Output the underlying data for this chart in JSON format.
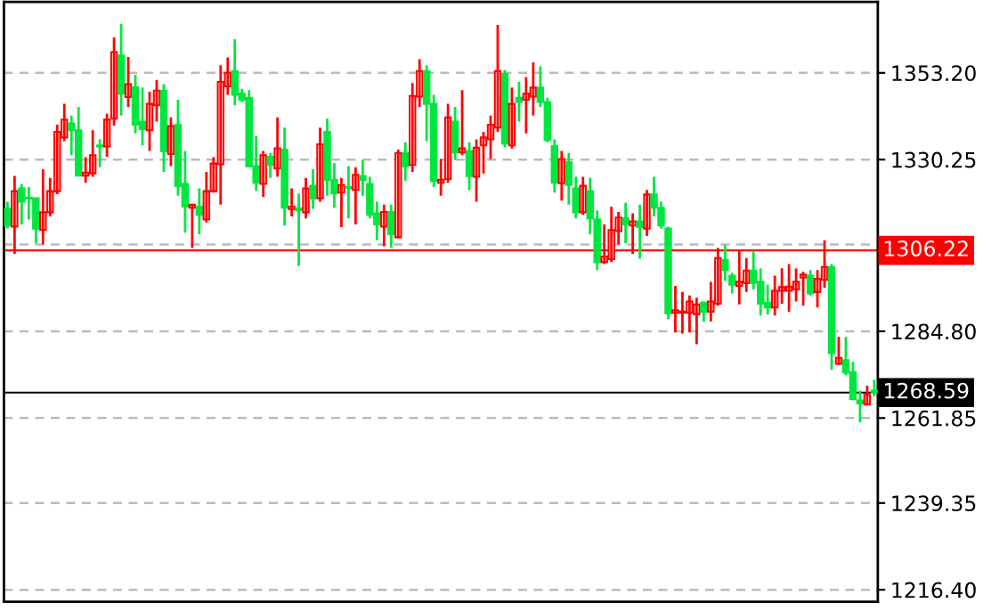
{
  "chart_data": {
    "type": "candlestick",
    "categories": [
      null,
      null,
      null,
      null,
      null,
      null,
      null,
      null,
      null,
      null,
      null,
      null,
      null,
      null,
      null,
      null,
      null,
      null,
      null,
      null,
      null,
      null,
      null,
      null,
      null,
      null,
      null,
      null,
      null,
      null,
      null,
      null,
      null,
      null,
      null,
      null,
      null,
      null,
      null,
      null,
      null,
      null,
      null,
      null,
      null,
      null,
      null,
      null,
      null,
      null,
      null,
      null,
      null,
      null,
      null,
      null,
      null,
      null,
      null,
      null,
      null,
      null,
      null,
      null,
      null,
      null,
      null,
      null,
      null,
      null,
      null,
      null,
      null,
      null,
      null,
      null,
      null,
      null,
      null,
      null,
      null,
      null,
      null,
      null,
      null,
      null,
      null,
      null,
      null,
      null,
      null,
      null,
      null,
      null,
      null,
      null,
      null,
      null,
      null,
      null,
      null,
      null,
      null,
      null,
      null,
      null,
      null,
      null,
      null,
      null,
      null,
      null,
      null,
      null,
      null,
      null,
      null,
      null,
      null,
      null,
      null,
      null,
      null
    ],
    "ohlc": [
      [
        1317.2,
        1319.1,
        1312.0,
        1312.8
      ],
      [
        1312.5,
        1325.9,
        1305.3,
        1321.9
      ],
      [
        1322.6,
        1323.8,
        1313.1,
        1319.1
      ],
      [
        1320.2,
        1323.0,
        1314.4,
        1319.9
      ],
      [
        1320.0,
        1320.2,
        1308.1,
        1312.0
      ],
      [
        1311.6,
        1327.7,
        1307.8,
        1316.3
      ],
      [
        1316.3,
        1325.4,
        1315.2,
        1321.9
      ],
      [
        1321.9,
        1339.5,
        1321.1,
        1337.6
      ],
      [
        1336.1,
        1345.0,
        1335.1,
        1340.8
      ],
      [
        1339.8,
        1341.9,
        1331.4,
        1338.0
      ],
      [
        1338.0,
        1344.2,
        1326.0,
        1326.0
      ],
      [
        1326.0,
        1330.9,
        1324.1,
        1326.8
      ],
      [
        1326.6,
        1338.0,
        1325.7,
        1331.4
      ],
      [
        1334.0,
        1335.6,
        1328.2,
        1333.7
      ],
      [
        1333.7,
        1342.4,
        1331.0,
        1340.8
      ],
      [
        1341.1,
        1362.6,
        1339.2,
        1358.7
      ],
      [
        1357.8,
        1366.2,
        1341.9,
        1347.7
      ],
      [
        1346.8,
        1357.4,
        1344.2,
        1350.2
      ],
      [
        1349.4,
        1352.7,
        1337.2,
        1339.5
      ],
      [
        1340.3,
        1349.3,
        1334.0,
        1338.3
      ],
      [
        1338.0,
        1348.2,
        1332.5,
        1345.0
      ],
      [
        1344.6,
        1351.3,
        1340.3,
        1348.5
      ],
      [
        1348.5,
        1350.2,
        1327.0,
        1332.5
      ],
      [
        1331.7,
        1341.4,
        1328.5,
        1339.1
      ],
      [
        1339.5,
        1346.1,
        1320.7,
        1323.2
      ],
      [
        1323.8,
        1332.5,
        1310.9,
        1317.8
      ],
      [
        1317.5,
        1318.3,
        1306.9,
        1318.3
      ],
      [
        1317.8,
        1322.6,
        1310.5,
        1315.6
      ],
      [
        1314.4,
        1327.0,
        1313.6,
        1321.9
      ],
      [
        1321.9,
        1330.9,
        1321.5,
        1329.2
      ],
      [
        1329.0,
        1355.2,
        1318.3,
        1350.8
      ],
      [
        1349.6,
        1357.3,
        1347.4,
        1353.2
      ],
      [
        1353.7,
        1362.1,
        1344.6,
        1347.4
      ],
      [
        1347.7,
        1349.0,
        1345.5,
        1346.1
      ],
      [
        1346.6,
        1348.6,
        1328.2,
        1328.5
      ],
      [
        1328.5,
        1336.4,
        1321.9,
        1324.1
      ],
      [
        1323.8,
        1332.5,
        1320.4,
        1331.4
      ],
      [
        1331.0,
        1332.0,
        1325.4,
        1328.8
      ],
      [
        1327.9,
        1341.4,
        1325.7,
        1333.2
      ],
      [
        1332.9,
        1338.7,
        1312.8,
        1317.5
      ],
      [
        1317.1,
        1322.6,
        1315.2,
        1317.8
      ],
      [
        1317.4,
        1321.3,
        1302.1,
        1316.8
      ],
      [
        1316.3,
        1325.4,
        1314.7,
        1322.6
      ],
      [
        1323.3,
        1327.7,
        1317.2,
        1319.9
      ],
      [
        1320.0,
        1338.7,
        1319.1,
        1334.3
      ],
      [
        1337.6,
        1341.1,
        1320.7,
        1324.9
      ],
      [
        1324.9,
        1329.3,
        1317.5,
        1321.3
      ],
      [
        1321.5,
        1325.4,
        1312.4,
        1323.5
      ],
      [
        1323.0,
        1328.5,
        1314.7,
        1322.7
      ],
      [
        1322.2,
        1328.2,
        1313.1,
        1326.2
      ],
      [
        1325.9,
        1330.1,
        1320.7,
        1324.8
      ],
      [
        1323.8,
        1325.7,
        1314.7,
        1315.6
      ],
      [
        1316.0,
        1319.1,
        1308.9,
        1313.1
      ],
      [
        1312.5,
        1318.3,
        1307.3,
        1316.4
      ],
      [
        1316.4,
        1318.3,
        1306.9,
        1310.5
      ],
      [
        1309.7,
        1332.9,
        1309.4,
        1332.0
      ],
      [
        1332.0,
        1334.8,
        1324.6,
        1328.5
      ],
      [
        1328.8,
        1350.5,
        1327.0,
        1347.1
      ],
      [
        1346.9,
        1356.8,
        1344.2,
        1353.7
      ],
      [
        1353.7,
        1355.2,
        1335.1,
        1345.0
      ],
      [
        1345.0,
        1347.4,
        1323.0,
        1324.6
      ],
      [
        1324.1,
        1330.4,
        1320.7,
        1324.9
      ],
      [
        1325.1,
        1345.0,
        1324.1,
        1341.4
      ],
      [
        1340.3,
        1344.2,
        1330.1,
        1332.1
      ],
      [
        1332.1,
        1348.6,
        1331.4,
        1333.2
      ],
      [
        1332.5,
        1334.8,
        1322.2,
        1325.9
      ],
      [
        1325.7,
        1335.6,
        1319.1,
        1333.4
      ],
      [
        1334.0,
        1337.6,
        1326.6,
        1336.1
      ],
      [
        1335.6,
        1341.9,
        1330.4,
        1339.5
      ],
      [
        1338.7,
        1365.9,
        1337.6,
        1353.7
      ],
      [
        1352.9,
        1354.0,
        1333.5,
        1334.5
      ],
      [
        1334.0,
        1349.3,
        1333.2,
        1345.0
      ],
      [
        1346.6,
        1350.8,
        1340.3,
        1345.5
      ],
      [
        1346.1,
        1352.1,
        1337.2,
        1347.7
      ],
      [
        1346.9,
        1356.0,
        1341.9,
        1349.3
      ],
      [
        1349.3,
        1354.9,
        1344.2,
        1345.5
      ],
      [
        1345.5,
        1346.6,
        1334.8,
        1335.4
      ],
      [
        1333.9,
        1335.6,
        1321.5,
        1324.1
      ],
      [
        1324.0,
        1332.5,
        1319.4,
        1330.4
      ],
      [
        1329.6,
        1332.0,
        1318.3,
        1323.5
      ],
      [
        1322.6,
        1325.7,
        1314.7,
        1316.3
      ],
      [
        1316.3,
        1325.7,
        1315.6,
        1323.3
      ],
      [
        1321.9,
        1325.4,
        1310.5,
        1314.7
      ],
      [
        1314.4,
        1316.8,
        1301.0,
        1303.1
      ],
      [
        1303.1,
        1313.1,
        1302.6,
        1304.6
      ],
      [
        1303.9,
        1317.8,
        1303.1,
        1311.6
      ],
      [
        1311.3,
        1316.4,
        1307.8,
        1314.9
      ],
      [
        1314.7,
        1318.8,
        1308.1,
        1313.1
      ],
      [
        1312.8,
        1316.0,
        1305.3,
        1313.9
      ],
      [
        1313.9,
        1318.3,
        1304.0,
        1312.4
      ],
      [
        1312.0,
        1322.2,
        1310.0,
        1321.0
      ],
      [
        1321.0,
        1325.7,
        1315.2,
        1317.5
      ],
      [
        1317.5,
        1319.1,
        1312.0,
        1312.8
      ],
      [
        1312.0,
        1312.5,
        1288.0,
        1289.6
      ],
      [
        1289.7,
        1296.8,
        1284.5,
        1290.4
      ],
      [
        1289.7,
        1295.2,
        1284.2,
        1290.0
      ],
      [
        1289.7,
        1294.3,
        1284.5,
        1292.7
      ],
      [
        1289.3,
        1293.7,
        1281.4,
        1291.9
      ],
      [
        1292.4,
        1292.7,
        1287.4,
        1290.0
      ],
      [
        1290.0,
        1297.9,
        1287.4,
        1292.7
      ],
      [
        1292.1,
        1306.9,
        1291.6,
        1304.2
      ],
      [
        1303.7,
        1307.6,
        1298.2,
        1301.0
      ],
      [
        1299.5,
        1300.3,
        1294.8,
        1297.1
      ],
      [
        1296.8,
        1306.5,
        1291.9,
        1297.9
      ],
      [
        1297.6,
        1304.2,
        1295.2,
        1300.9
      ],
      [
        1300.9,
        1306.1,
        1295.9,
        1297.6
      ],
      [
        1297.9,
        1301.5,
        1289.0,
        1292.1
      ],
      [
        1292.4,
        1297.1,
        1289.3,
        1291.1
      ],
      [
        1291.1,
        1299.5,
        1289.0,
        1295.5
      ],
      [
        1295.5,
        1301.5,
        1292.1,
        1296.5
      ],
      [
        1295.5,
        1302.6,
        1290.0,
        1296.6
      ],
      [
        1295.9,
        1301.4,
        1292.7,
        1297.9
      ],
      [
        1299.0,
        1300.6,
        1291.6,
        1299.8
      ],
      [
        1299.5,
        1301.0,
        1294.3,
        1294.8
      ],
      [
        1295.2,
        1301.0,
        1291.1,
        1298.7
      ],
      [
        1298.4,
        1308.9,
        1296.3,
        1301.8
      ],
      [
        1301.8,
        1302.6,
        1274.6,
        1279.0
      ],
      [
        1276.2,
        1283.3,
        1275.9,
        1277.8
      ],
      [
        1277.2,
        1283.3,
        1273.2,
        1273.9
      ],
      [
        1274.0,
        1276.7,
        1266.5,
        1266.9
      ],
      [
        1266.5,
        1269.1,
        1260.7,
        1265.7
      ],
      [
        1265.4,
        1270.4,
        1265.4,
        1268.0
      ],
      [
        1269.1,
        1272.0,
        1267.6,
        1268.59
      ]
    ],
    "colors": [
      "#00e640",
      "#ff0000",
      "#00e640",
      "#00e640",
      "#00e640",
      "#ff0000",
      "#ff0000",
      "#ff0000",
      "#ff0000",
      "#00e640",
      "#00e640",
      "#ff0000",
      "#ff0000",
      "#00e640",
      "#ff0000",
      "#ff0000",
      "#00e640",
      "#ff0000",
      "#00e640",
      "#00e640",
      "#ff0000",
      "#ff0000",
      "#00e640",
      "#ff0000",
      "#00e640",
      "#00e640",
      "#ff0000",
      "#00e640",
      "#ff0000",
      "#ff0000",
      "#ff0000",
      "#ff0000",
      "#00e640",
      "#00e640",
      "#00e640",
      "#00e640",
      "#ff0000",
      "#00e640",
      "#ff0000",
      "#00e640",
      "#ff0000",
      "#00e640",
      "#ff0000",
      "#00e640",
      "#ff0000",
      "#00e640",
      "#00e640",
      "#ff0000",
      "#00e640",
      "#ff0000",
      "#00e640",
      "#00e640",
      "#00e640",
      "#ff0000",
      "#00e640",
      "#ff0000",
      "#00e640",
      "#ff0000",
      "#ff0000",
      "#00e640",
      "#00e640",
      "#ff0000",
      "#ff0000",
      "#00e640",
      "#ff0000",
      "#00e640",
      "#ff0000",
      "#ff0000",
      "#ff0000",
      "#ff0000",
      "#00e640",
      "#ff0000",
      "#00e640",
      "#ff0000",
      "#ff0000",
      "#00e640",
      "#00e640",
      "#00e640",
      "#ff0000",
      "#00e640",
      "#00e640",
      "#ff0000",
      "#00e640",
      "#00e640",
      "#ff0000",
      "#ff0000",
      "#ff0000",
      "#00e640",
      "#ff0000",
      "#00e640",
      "#ff0000",
      "#00e640",
      "#00e640",
      "#00e640",
      "#ff0000",
      "#ff0000",
      "#ff0000",
      "#ff0000",
      "#00e640",
      "#ff0000",
      "#ff0000",
      "#00e640",
      "#00e640",
      "#ff0000",
      "#ff0000",
      "#00e640",
      "#00e640",
      "#00e640",
      "#ff0000",
      "#ff0000",
      "#ff0000",
      "#ff0000",
      "#ff0000",
      "#00e640",
      "#ff0000",
      "#ff0000",
      "#00e640",
      "#ff0000",
      "#00e640",
      "#00e640",
      "#00e640",
      "#ff0000",
      "#00e640"
    ],
    "ylim": [
      1213.2,
      1372.0
    ],
    "yticks": [
      {
        "value": 1216.4,
        "label": "1216.40"
      },
      {
        "value": 1239.35,
        "label": "1239.35"
      },
      {
        "value": 1261.85,
        "label": "1261.85"
      },
      {
        "value": 1284.8,
        "label": "1284.80"
      },
      {
        "value": 1307.75,
        "label": null
      },
      {
        "value": 1330.25,
        "label": "1330.25"
      },
      {
        "value": 1353.2,
        "label": "1353.20"
      }
    ],
    "ref_lines": [
      {
        "axis": "y",
        "value": 1306.22,
        "label": "1306.22",
        "color": "#ff0000",
        "line_style": "solid"
      },
      {
        "axis": "y",
        "value": 1268.59,
        "label": "1268.59",
        "color": "#000000",
        "line_style": "solid"
      }
    ],
    "grid": "y"
  }
}
